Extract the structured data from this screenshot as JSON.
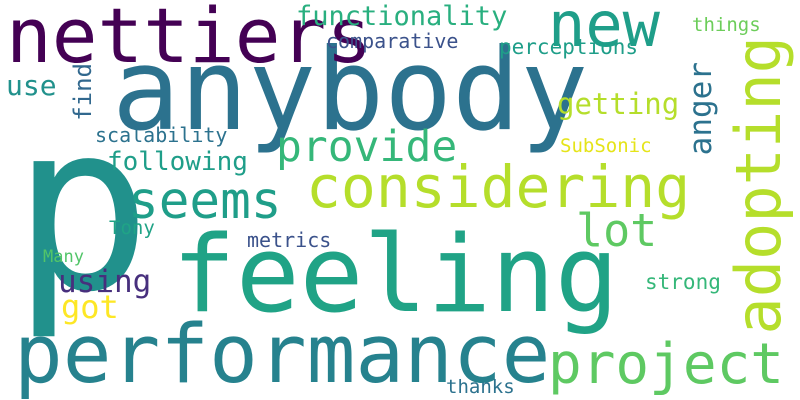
{
  "words": [
    {
      "id": "p",
      "text": "p",
      "color": "#21918c"
    },
    {
      "id": "anybody",
      "text": "anybody",
      "color": "#2c728e"
    },
    {
      "id": "feeling",
      "text": "feeling",
      "color": "#20a386"
    },
    {
      "id": "nettiers",
      "text": "nettiers",
      "color": "#440154"
    },
    {
      "id": "performance",
      "text": "performance",
      "color": "#26828e"
    },
    {
      "id": "considering",
      "text": "considering",
      "color": "#b5de2b"
    },
    {
      "id": "adopting",
      "text": "adopting",
      "color": "#b5de2b"
    },
    {
      "id": "project",
      "text": "project",
      "color": "#5ec962"
    },
    {
      "id": "new",
      "text": "new",
      "color": "#1f9e89"
    },
    {
      "id": "seems",
      "text": "seems",
      "color": "#1f9e89"
    },
    {
      "id": "provide",
      "text": "provide",
      "color": "#35b779"
    },
    {
      "id": "lot",
      "text": "lot",
      "color": "#5ec962"
    },
    {
      "id": "functionality",
      "text": "functionality",
      "color": "#29af7f"
    },
    {
      "id": "getting",
      "text": "getting",
      "color": "#b5de2b"
    },
    {
      "id": "following",
      "text": "following",
      "color": "#1f9e89"
    },
    {
      "id": "using",
      "text": "using",
      "color": "#472f7d"
    },
    {
      "id": "got",
      "text": "got",
      "color": "#fde725"
    },
    {
      "id": "perceptions",
      "text": "perceptions",
      "color": "#1f9e89"
    },
    {
      "id": "comparative",
      "text": "comparative",
      "color": "#3b528b"
    },
    {
      "id": "anger",
      "text": "anger",
      "color": "#2c728e"
    },
    {
      "id": "use",
      "text": "use",
      "color": "#21918c"
    },
    {
      "id": "find",
      "text": "find",
      "color": "#31688e"
    },
    {
      "id": "scalability",
      "text": "scalability",
      "color": "#2c728e"
    },
    {
      "id": "metrics",
      "text": "metrics",
      "color": "#3b528b"
    },
    {
      "id": "strong",
      "text": "strong",
      "color": "#35b779"
    },
    {
      "id": "subsonic",
      "text": "SubSonic",
      "color": "#e5e419"
    },
    {
      "id": "things",
      "text": "things",
      "color": "#6ccd5a"
    },
    {
      "id": "tony",
      "text": "Tony",
      "color": "#20a386"
    },
    {
      "id": "many",
      "text": "Many",
      "color": "#52c569"
    },
    {
      "id": "thanks",
      "text": "thanks",
      "color": "#2c728e"
    }
  ]
}
